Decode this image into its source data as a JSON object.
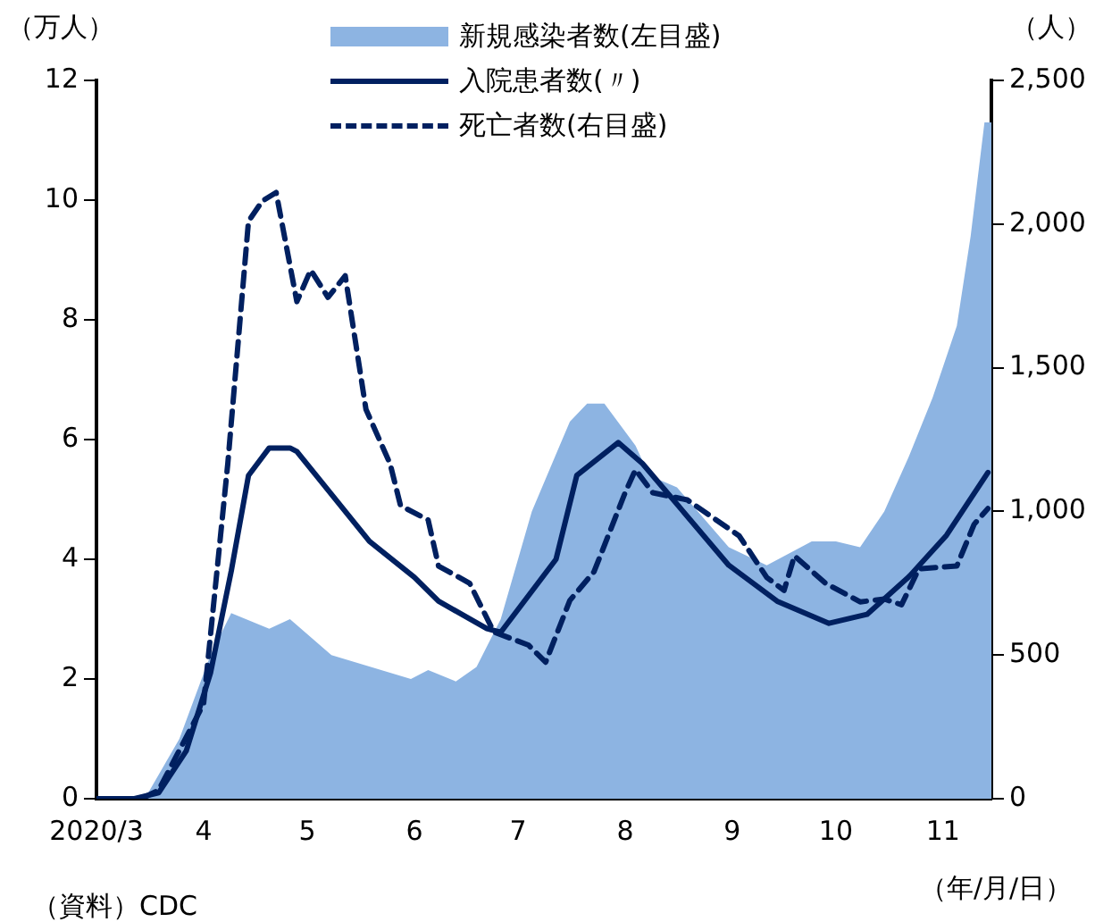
{
  "chart_data": {
    "type": "line",
    "xlabel": "（年/月/日）",
    "ylabel": "（万人）",
    "y2label": "（人）",
    "annotations": [
      "（資料）CDC"
    ],
    "xlim": [
      "2020-03-01",
      "2020-11-15"
    ],
    "xticks": [
      {
        "value": "2020-03-01",
        "label": "2020/3"
      },
      {
        "value": "2020-04-01",
        "label": "4"
      },
      {
        "value": "2020-05-01",
        "label": "5"
      },
      {
        "value": "2020-06-01",
        "label": "6"
      },
      {
        "value": "2020-07-01",
        "label": "7"
      },
      {
        "value": "2020-08-01",
        "label": "8"
      },
      {
        "value": "2020-09-01",
        "label": "9"
      },
      {
        "value": "2020-10-01",
        "label": "10"
      },
      {
        "value": "2020-11-01",
        "label": "11"
      }
    ],
    "ylim": [
      0,
      12
    ],
    "yticks": [
      0,
      2,
      4,
      6,
      8,
      10,
      12
    ],
    "y2lim": [
      0,
      2500
    ],
    "y2ticks": [
      0,
      {
        "value": 500,
        "label": "500"
      },
      {
        "value": 1000,
        "label": "1,000"
      },
      {
        "value": 1500,
        "label": "1,500"
      },
      {
        "value": 2000,
        "label": "2,000"
      },
      {
        "value": 2500,
        "label": "2,500"
      }
    ],
    "legend": "top",
    "grid": false,
    "series": [
      {
        "name": "新規感染者数(左目盛)",
        "type": "area",
        "color": "#8db4e2",
        "x": [
          "2020-03-01",
          "2020-03-10",
          "2020-03-16",
          "2020-03-25",
          "2020-04-03",
          "2020-04-09",
          "2020-04-20",
          "2020-04-26",
          "2020-05-08",
          "2020-05-31",
          "2020-06-05",
          "2020-06-13",
          "2020-06-19",
          "2020-06-26",
          "2020-07-05",
          "2020-07-16",
          "2020-07-21",
          "2020-07-26",
          "2020-08-04",
          "2020-08-08",
          "2020-08-16",
          "2020-08-31",
          "2020-09-11",
          "2020-09-24",
          "2020-10-01",
          "2020-10-08",
          "2020-10-15",
          "2020-10-22",
          "2020-10-29",
          "2020-11-05",
          "2020-11-09",
          "2020-11-13",
          "2020-11-15"
        ],
        "values": [
          0,
          0,
          0.1,
          1.0,
          2.4,
          3.1,
          2.84,
          3.0,
          2.4,
          2.0,
          2.15,
          1.96,
          2.2,
          3.0,
          4.8,
          6.3,
          6.6,
          6.6,
          5.9,
          5.4,
          5.2,
          4.2,
          3.9,
          4.3,
          4.3,
          4.2,
          4.8,
          5.7,
          6.7,
          7.9,
          9.4,
          11.3,
          11.3
        ]
      },
      {
        "name": "入院患者数(〃)",
        "type": "line",
        "color": "#002060",
        "x": [
          "2020-03-01",
          "2020-03-12",
          "2020-03-19",
          "2020-03-27",
          "2020-04-03",
          "2020-04-09",
          "2020-04-14",
          "2020-04-20",
          "2020-04-26",
          "2020-04-28",
          "2020-05-05",
          "2020-05-19",
          "2020-06-01",
          "2020-06-08",
          "2020-06-22",
          "2020-06-26",
          "2020-07-12",
          "2020-07-18",
          "2020-07-30",
          "2020-08-06",
          "2020-08-31",
          "2020-09-14",
          "2020-09-29",
          "2020-10-10",
          "2020-10-22",
          "2020-11-02",
          "2020-11-14"
        ],
        "values": [
          0,
          0,
          0.1,
          0.8,
          2.1,
          3.8,
          5.4,
          5.86,
          5.86,
          5.8,
          5.3,
          4.3,
          3.7,
          3.3,
          2.84,
          2.78,
          4.0,
          5.4,
          5.95,
          5.6,
          3.9,
          3.3,
          2.93,
          3.08,
          3.7,
          4.4,
          5.45
        ]
      },
      {
        "name": "死亡者数(右目盛)",
        "type": "line",
        "line_style": "dashed",
        "axis": "y2",
        "color": "#002060",
        "x": [
          "2020-03-01",
          "2020-03-14",
          "2020-03-19",
          "2020-04-01",
          "2020-04-08",
          "2020-04-14",
          "2020-04-18",
          "2020-04-22",
          "2020-04-28",
          "2020-05-02",
          "2020-05-07",
          "2020-05-12",
          "2020-05-18",
          "2020-05-25",
          "2020-05-28",
          "2020-06-05",
          "2020-06-08",
          "2020-06-17",
          "2020-06-24",
          "2020-07-04",
          "2020-07-09",
          "2020-07-16",
          "2020-07-23",
          "2020-08-01",
          "2020-08-04",
          "2020-08-09",
          "2020-08-19",
          "2020-09-03",
          "2020-09-11",
          "2020-09-16",
          "2020-09-19",
          "2020-09-28",
          "2020-10-08",
          "2020-10-15",
          "2020-10-20",
          "2020-10-25",
          "2020-11-05",
          "2020-11-10",
          "2020-11-14"
        ],
        "values": [
          0,
          0,
          30,
          330,
          1165,
          2010,
          2080,
          2110,
          1730,
          1840,
          1745,
          1820,
          1355,
          1165,
          1020,
          970,
          810,
          750,
          580,
          535,
          475,
          690,
          790,
          1065,
          1145,
          1065,
          1040,
          915,
          770,
          725,
          845,
          750,
          685,
          695,
          675,
          800,
          810,
          955,
          1010
        ]
      }
    ]
  }
}
